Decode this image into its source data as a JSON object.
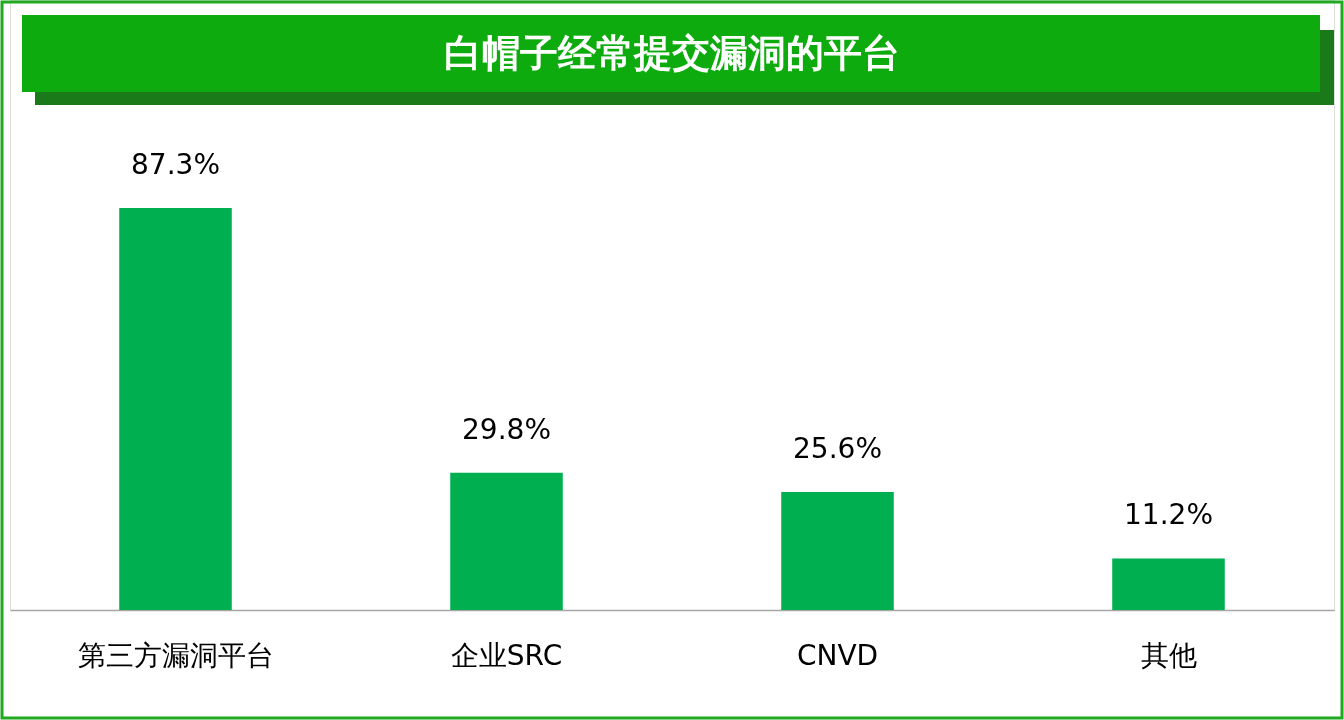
{
  "chart_data": {
    "type": "bar",
    "title": "白帽子经常提交漏洞的平台",
    "categories": [
      "第三方漏洞平台",
      "企业SRC",
      "CNVD",
      "其他"
    ],
    "values": [
      87.3,
      29.8,
      25.6,
      11.2
    ],
    "value_labels": [
      "87.3%",
      "29.8%",
      "25.6%",
      "11.2%"
    ],
    "color": "#00b050",
    "grid": false
  }
}
